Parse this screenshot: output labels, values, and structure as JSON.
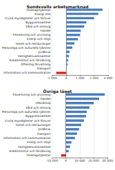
{
  "chart_data": [
    {
      "type": "bar",
      "title": "Sundsvalls arbetsmarknad",
      "orientation": "horizontal",
      "grid": true,
      "categories": [
        "Företagstjänster",
        "Energi mm",
        "Civila myndigheter och försvar",
        "Byggverksamhet",
        "Vård och omsorg",
        "Handel",
        "Tillverkning och utvinning",
        "Energi och miljö",
        "Hotell och restauranger",
        "Personliga och kulturella tjänster",
        "Jordbruk",
        "Fastighetsverksamhet",
        "Kreditinstitut och försäkring",
        "Offentlig förvaltning",
        "Transport",
        "Information och kommunikation"
      ],
      "values": [
        2600,
        2300,
        2000,
        1450,
        1300,
        1050,
        1000,
        850,
        600,
        450,
        250,
        200,
        150,
        100,
        50,
        -700
      ],
      "colors": [
        "#4a7ebb",
        "#4a7ebb",
        "#4a7ebb",
        "#4a7ebb",
        "#4a7ebb",
        "#4a7ebb",
        "#4a7ebb",
        "#4a7ebb",
        "#4a7ebb",
        "#4a7ebb",
        "#4a7ebb",
        "#4a7ebb",
        "#4a7ebb",
        "#4a7ebb",
        "#4a7ebb",
        "#e0201b"
      ],
      "xlim": [
        -1000,
        3000
      ],
      "xticks": [
        {
          "value": -1000,
          "label": "-1 000"
        },
        0,
        {
          "value": 1000,
          "label": "1 000"
        },
        {
          "value": 2000,
          "label": "2 000"
        },
        {
          "value": 3000,
          "label": "3 000"
        }
      ]
    },
    {
      "type": "bar",
      "title": "Övriga länet",
      "orientation": "horizontal",
      "grid": true,
      "categories": [
        "Tillverkning och utvinning",
        "Handel",
        "Utbildning",
        "Vård och omsorg",
        "Personliga och kulturella tjänster",
        "Byggverksamhet",
        "Civila myndigheter och försvar",
        "Hotell och restauranger",
        "Jordbruk",
        "Transport",
        "Information och kommunikation",
        "Energi och miljö",
        "Fastighetsverksamhet",
        "Kreditinstitut och försäkring",
        "Företagstjänster"
      ],
      "values": [
        28000,
        24000,
        20000,
        17000,
        15000,
        14500,
        13000,
        11000,
        9500,
        8000,
        6500,
        4000,
        3000,
        2000,
        -3500
      ],
      "colors": [
        "#4a7ebb",
        "#4a7ebb",
        "#4a7ebb",
        "#4a7ebb",
        "#4a7ebb",
        "#4a7ebb",
        "#4a7ebb",
        "#4a7ebb",
        "#4a7ebb",
        "#4a7ebb",
        "#4a7ebb",
        "#4a7ebb",
        "#4a7ebb",
        "#4a7ebb",
        "#e0201b"
      ],
      "xlim": [
        -10000,
        30000
      ],
      "xticks": [
        {
          "value": -10000,
          "label": "-10 000"
        },
        0,
        {
          "value": 10000,
          "label": "10 000"
        },
        {
          "value": 20000,
          "label": "20 000"
        },
        {
          "value": 30000,
          "label": "30 000"
        }
      ]
    }
  ]
}
